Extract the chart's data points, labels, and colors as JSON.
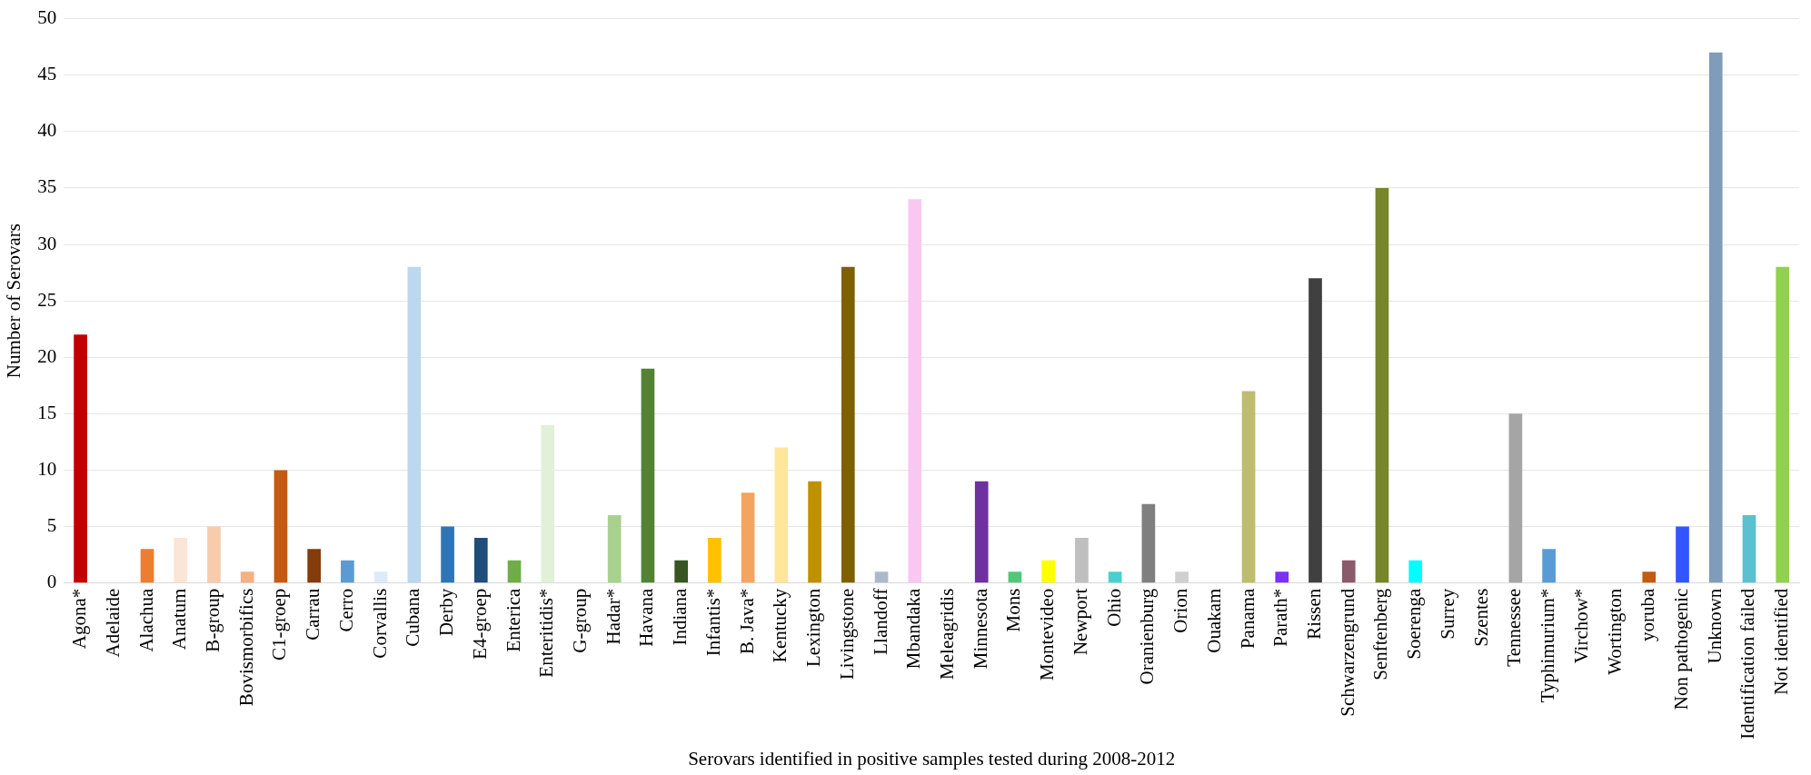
{
  "chart_data": {
    "type": "bar",
    "xlabel": "Serovars identified in positive samples tested during 2008-2012",
    "ylabel": "Number of Serovars",
    "categories": [
      "Agona*",
      "Adelaide",
      "Alachua",
      "Anatum",
      "B-group",
      "Bovismorbifics",
      "C1-groep",
      "Carrau",
      "Cerro",
      "Corvallis",
      "Cubana",
      "Derby",
      "E4-groep",
      "Enterica",
      "Enteritidis*",
      "G-group",
      "Hadar*",
      "Havana",
      "Indiana",
      "Infantis*",
      "B. Java*",
      "Kentucky",
      "Lexington",
      "Livingstone",
      "Llandoff",
      "Mbandaka",
      "Meleagridis",
      "Minnesota",
      "Mons",
      "Montevideo",
      "Newport",
      "Ohio",
      "Oranienburg",
      "Orion",
      "Ouakam",
      "Panama",
      "Parath*",
      "Rissen",
      "Schwarzengrund",
      "Senftenberg",
      "Soerenga",
      "Surrey",
      "Szentes",
      "Tennessee",
      "Typhimurium*",
      "Virchow*",
      "Wortington",
      "yoruba",
      "Non pathogenic",
      "Unknown",
      "Identification failed",
      "Not identified"
    ],
    "values": [
      22,
      0,
      3,
      4,
      5,
      1,
      10,
      3,
      2,
      1,
      28,
      5,
      4,
      2,
      14,
      0,
      6,
      19,
      2,
      4,
      8,
      12,
      9,
      28,
      1,
      34,
      0,
      9,
      1,
      2,
      4,
      1,
      7,
      1,
      0,
      17,
      1,
      27,
      2,
      35,
      2,
      0,
      0,
      15,
      3,
      0,
      0,
      1,
      5,
      47,
      6,
      28
    ],
    "colors": [
      "#c00000",
      "#c00000",
      "#ed7d31",
      "#fbe5d6",
      "#f8cbad",
      "#f4b183",
      "#c55a11",
      "#843c0c",
      "#5b9bd5",
      "#deebf7",
      "#bdd7ee",
      "#2e75b6",
      "#1f4e79",
      "#70ad47",
      "#e2f0d9",
      "#a9d18e",
      "#a9d18e",
      "#548235",
      "#375623",
      "#ffc000",
      "#f4a460",
      "#ffe699",
      "#bf9000",
      "#7f6000",
      "#adb9ca",
      "#f8c8f0",
      "#f8c8f0",
      "#7030a0",
      "#50c878",
      "#ffff00",
      "#bfbfbf",
      "#48d1cc",
      "#7f7f7f",
      "#d0cece",
      "#d0cece",
      "#bdbd6f",
      "#7b2ff7",
      "#404040",
      "#8b5a6b",
      "#77862a",
      "#00ffff",
      "#00ffff",
      "#00ffff",
      "#a5a5a5",
      "#5b9bd5",
      "#5b9bd5",
      "#5b9bd5",
      "#c55a11",
      "#3355ff",
      "#7f9cba",
      "#5bc0d0",
      "#92d050"
    ],
    "ylim": [
      0,
      50
    ],
    "yticks": [
      0,
      5,
      10,
      15,
      20,
      25,
      30,
      35,
      40,
      45,
      50
    ],
    "grid": "y"
  }
}
